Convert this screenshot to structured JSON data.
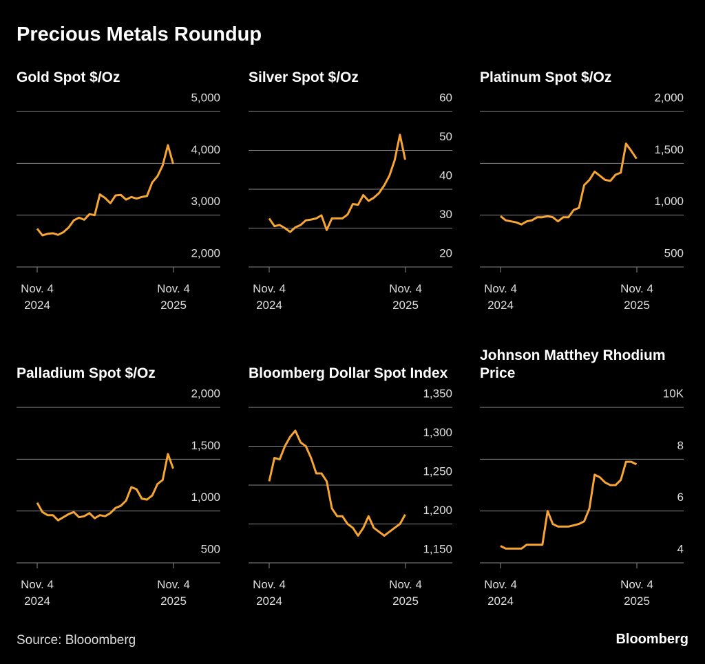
{
  "title": "Precious Metals Roundup",
  "source": "Source: Blooomberg",
  "brand": "Bloomberg",
  "chart_data": [
    {
      "type": "line",
      "title": "Gold Spot $/Oz",
      "x": [
        "2024-11-04",
        "2024-11-18",
        "2024-12-02",
        "2024-12-16",
        "2024-12-30",
        "2025-01-13",
        "2025-01-27",
        "2025-02-10",
        "2025-02-24",
        "2025-03-10",
        "2025-03-24",
        "2025-04-07",
        "2025-04-21",
        "2025-05-05",
        "2025-05-19",
        "2025-06-02",
        "2025-06-16",
        "2025-06-30",
        "2025-07-14",
        "2025-07-28",
        "2025-08-11",
        "2025-08-25",
        "2025-09-08",
        "2025-09-22",
        "2025-10-06",
        "2025-10-20",
        "2025-11-03"
      ],
      "series": [
        {
          "color": "#f7a533",
          "values": [
            2740,
            2610,
            2640,
            2650,
            2620,
            2670,
            2760,
            2900,
            2950,
            2910,
            3020,
            3000,
            3400,
            3330,
            3230,
            3380,
            3390,
            3300,
            3350,
            3320,
            3350,
            3370,
            3630,
            3750,
            3960,
            4350,
            3990
          ]
        }
      ],
      "xlim": [
        "2024-11-04",
        "2025-11-04"
      ],
      "xticks": [
        {
          "value": "2024-11-04",
          "label": "Nov. 4\n2024"
        },
        {
          "value": "2025-11-04",
          "label": "Nov. 4\n2025"
        }
      ],
      "ylim": [
        2000,
        5000
      ],
      "yticks": [
        {
          "value": 2000,
          "label": "2,000"
        },
        {
          "value": 3000,
          "label": "3,000"
        },
        {
          "value": 4000,
          "label": "4,000"
        },
        {
          "value": 5000,
          "label": "5,000"
        }
      ]
    },
    {
      "type": "line",
      "title": "Silver Spot $/Oz",
      "x": [
        "2024-11-04",
        "2024-11-18",
        "2024-12-02",
        "2024-12-16",
        "2024-12-30",
        "2025-01-13",
        "2025-01-27",
        "2025-02-10",
        "2025-02-24",
        "2025-03-10",
        "2025-03-24",
        "2025-04-07",
        "2025-04-21",
        "2025-05-05",
        "2025-05-19",
        "2025-06-02",
        "2025-06-16",
        "2025-06-30",
        "2025-07-14",
        "2025-07-28",
        "2025-08-11",
        "2025-08-25",
        "2025-09-08",
        "2025-09-22",
        "2025-10-06",
        "2025-10-20",
        "2025-11-03"
      ],
      "series": [
        {
          "color": "#f7a533",
          "values": [
            32.5,
            30.5,
            30.8,
            30.0,
            29.0,
            30.2,
            30.8,
            32.0,
            32.2,
            32.5,
            33.3,
            29.5,
            32.5,
            32.5,
            32.5,
            33.5,
            36.2,
            36.0,
            38.5,
            37.0,
            37.8,
            39.0,
            41.0,
            43.5,
            47.5,
            54.0,
            47.6
          ]
        }
      ],
      "xlim": [
        "2024-11-04",
        "2025-11-04"
      ],
      "xticks": [
        {
          "value": "2024-11-04",
          "label": "Nov. 4\n2024"
        },
        {
          "value": "2025-11-04",
          "label": "Nov. 4\n2025"
        }
      ],
      "ylim": [
        20,
        60
      ],
      "yticks": [
        20,
        30,
        40,
        50,
        60
      ]
    },
    {
      "type": "line",
      "title": "Platinum Spot $/Oz",
      "x": [
        "2024-11-04",
        "2024-11-18",
        "2024-12-02",
        "2024-12-16",
        "2024-12-30",
        "2025-01-13",
        "2025-01-27",
        "2025-02-10",
        "2025-02-24",
        "2025-03-10",
        "2025-03-24",
        "2025-04-07",
        "2025-04-21",
        "2025-05-05",
        "2025-05-19",
        "2025-06-02",
        "2025-06-16",
        "2025-06-30",
        "2025-07-14",
        "2025-07-28",
        "2025-08-11",
        "2025-08-25",
        "2025-09-08",
        "2025-09-22",
        "2025-10-06",
        "2025-10-20",
        "2025-11-03"
      ],
      "series": [
        {
          "color": "#f7a533",
          "values": [
            990,
            950,
            940,
            930,
            910,
            940,
            950,
            980,
            980,
            990,
            980,
            940,
            980,
            980,
            1050,
            1070,
            1290,
            1340,
            1420,
            1380,
            1340,
            1330,
            1390,
            1410,
            1690,
            1620,
            1545
          ]
        }
      ],
      "xlim": [
        "2024-11-04",
        "2025-11-04"
      ],
      "xticks": [
        {
          "value": "2024-11-04",
          "label": "Nov. 4\n2024"
        },
        {
          "value": "2025-11-04",
          "label": "Nov. 4\n2025"
        }
      ],
      "ylim": [
        500,
        2000
      ],
      "yticks": [
        500,
        {
          "value": 1000,
          "label": "1,000"
        },
        {
          "value": 1500,
          "label": "1,500"
        },
        {
          "value": 2000,
          "label": "2,000"
        }
      ]
    },
    {
      "type": "line",
      "title": "Palladium Spot $/Oz",
      "x": [
        "2024-11-04",
        "2024-11-18",
        "2024-12-02",
        "2024-12-16",
        "2024-12-30",
        "2025-01-13",
        "2025-01-27",
        "2025-02-10",
        "2025-02-24",
        "2025-03-10",
        "2025-03-24",
        "2025-04-07",
        "2025-04-21",
        "2025-05-05",
        "2025-05-19",
        "2025-06-02",
        "2025-06-16",
        "2025-06-30",
        "2025-07-14",
        "2025-07-28",
        "2025-08-11",
        "2025-08-25",
        "2025-09-08",
        "2025-09-22",
        "2025-10-06",
        "2025-10-20",
        "2025-11-03"
      ],
      "series": [
        {
          "color": "#f7a533",
          "values": [
            1080,
            990,
            960,
            960,
            910,
            940,
            970,
            990,
            940,
            950,
            980,
            930,
            960,
            950,
            980,
            1030,
            1050,
            1100,
            1230,
            1210,
            1120,
            1110,
            1150,
            1260,
            1300,
            1550,
            1410
          ]
        }
      ],
      "xlim": [
        "2024-11-04",
        "2025-11-04"
      ],
      "xticks": [
        {
          "value": "2024-11-04",
          "label": "Nov. 4\n2024"
        },
        {
          "value": "2025-11-04",
          "label": "Nov. 4\n2025"
        }
      ],
      "ylim": [
        500,
        2000
      ],
      "yticks": [
        500,
        {
          "value": 1000,
          "label": "1,000"
        },
        {
          "value": 1500,
          "label": "1,500"
        },
        {
          "value": 2000,
          "label": "2,000"
        }
      ]
    },
    {
      "type": "line",
      "title": "Bloomberg Dollar Spot Index",
      "x": [
        "2024-11-04",
        "2024-11-18",
        "2024-12-02",
        "2024-12-16",
        "2024-12-30",
        "2025-01-13",
        "2025-01-27",
        "2025-02-10",
        "2025-02-24",
        "2025-03-10",
        "2025-03-24",
        "2025-04-07",
        "2025-04-21",
        "2025-05-05",
        "2025-05-19",
        "2025-06-02",
        "2025-06-16",
        "2025-06-30",
        "2025-07-14",
        "2025-07-28",
        "2025-08-11",
        "2025-08-25",
        "2025-09-08",
        "2025-09-22",
        "2025-10-06",
        "2025-10-20",
        "2025-11-03"
      ],
      "series": [
        {
          "color": "#f7a533",
          "values": [
            1255,
            1285,
            1283,
            1300,
            1312,
            1320,
            1305,
            1300,
            1285,
            1265,
            1265,
            1255,
            1220,
            1210,
            1210,
            1200,
            1195,
            1185,
            1195,
            1210,
            1195,
            1190,
            1185,
            1190,
            1195,
            1200,
            1212
          ]
        }
      ],
      "xlim": [
        "2024-11-04",
        "2025-11-04"
      ],
      "xticks": [
        {
          "value": "2024-11-04",
          "label": "Nov. 4\n2024"
        },
        {
          "value": "2025-11-04",
          "label": "Nov. 4\n2025"
        }
      ],
      "ylim": [
        1150,
        1350
      ],
      "yticks": [
        {
          "value": 1150,
          "label": "1,150"
        },
        {
          "value": 1200,
          "label": "1,200"
        },
        {
          "value": 1250,
          "label": "1,250"
        },
        {
          "value": 1300,
          "label": "1,300"
        },
        {
          "value": 1350,
          "label": "1,350"
        }
      ]
    },
    {
      "type": "line",
      "title": "Johnson Matthey Rhodium Price",
      "x": [
        "2024-11-04",
        "2024-11-18",
        "2024-12-02",
        "2024-12-16",
        "2024-12-30",
        "2025-01-13",
        "2025-01-27",
        "2025-02-10",
        "2025-02-24",
        "2025-03-10",
        "2025-03-24",
        "2025-04-07",
        "2025-04-21",
        "2025-05-05",
        "2025-05-19",
        "2025-06-02",
        "2025-06-16",
        "2025-06-30",
        "2025-07-14",
        "2025-07-28",
        "2025-08-11",
        "2025-08-25",
        "2025-09-08",
        "2025-09-22",
        "2025-10-06",
        "2025-10-20",
        "2025-11-03"
      ],
      "series": [
        {
          "color": "#f7a533",
          "values": [
            4.65,
            4.55,
            4.55,
            4.55,
            4.55,
            4.7,
            4.7,
            4.7,
            4.7,
            6.0,
            5.5,
            5.4,
            5.4,
            5.4,
            5.45,
            5.5,
            5.6,
            6.1,
            7.4,
            7.3,
            7.1,
            7.0,
            7.0,
            7.2,
            7.9,
            7.9,
            7.8
          ]
        }
      ],
      "xlim": [
        "2024-11-04",
        "2025-11-04"
      ],
      "xticks": [
        {
          "value": "2024-11-04",
          "label": "Nov. 4\n2024"
        },
        {
          "value": "2025-11-04",
          "label": "Nov. 4\n2025"
        }
      ],
      "ylim": [
        4,
        10
      ],
      "yticks": [
        4,
        6,
        8,
        {
          "value": 10,
          "label": "10K"
        }
      ]
    }
  ]
}
